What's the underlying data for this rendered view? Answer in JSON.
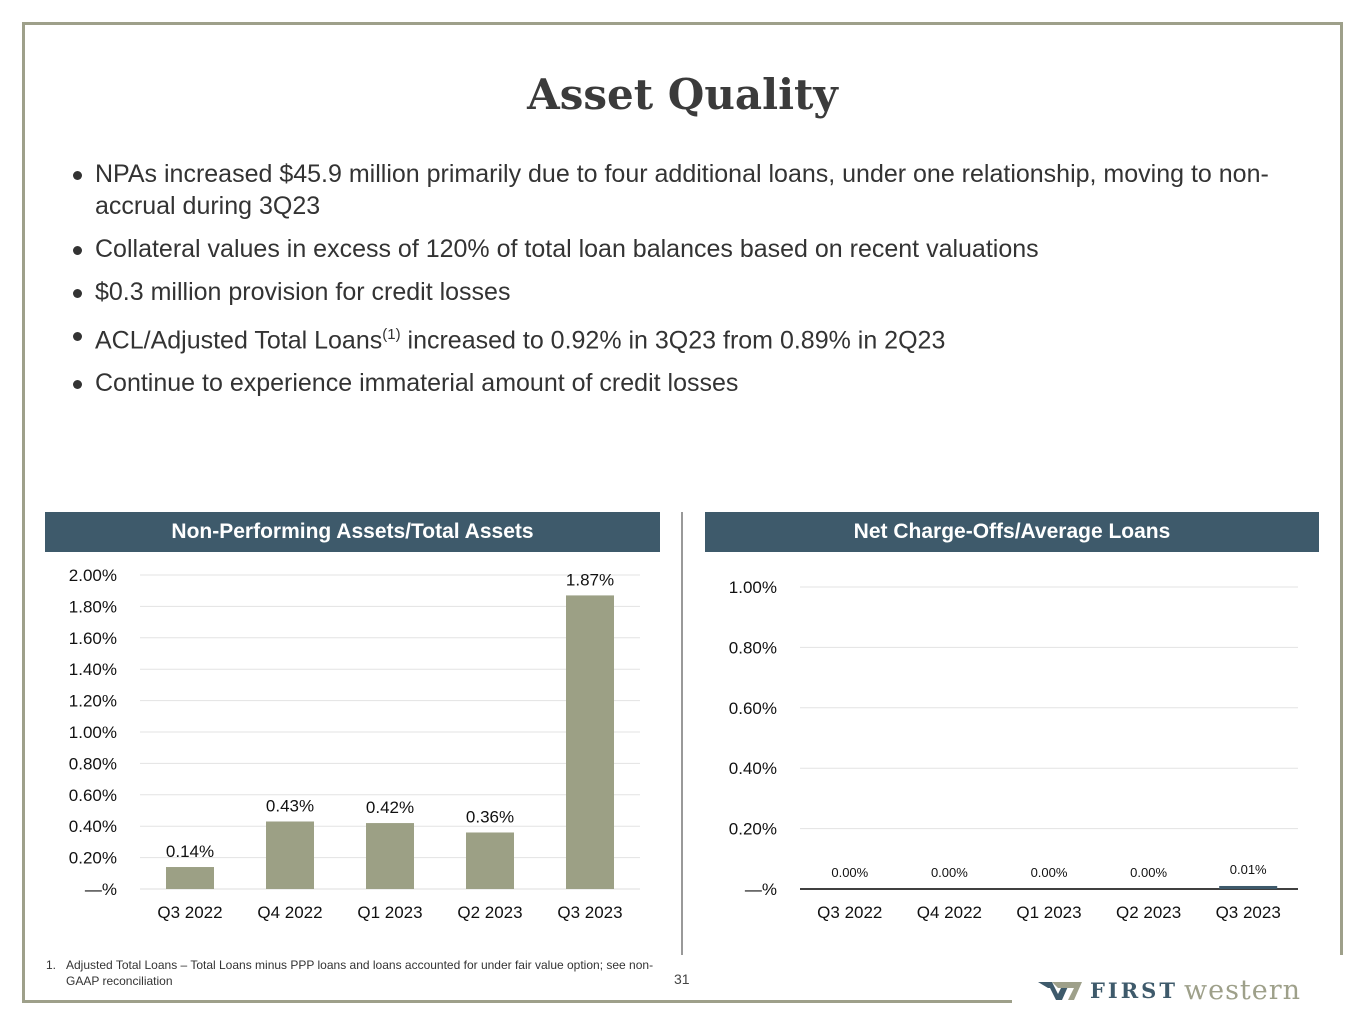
{
  "title": "Asset Quality",
  "bullets": [
    {
      "text": "NPAs increased $45.9 million primarily due to four additional loans, under one relationship, moving to non-accrual during 3Q23"
    },
    {
      "text": "Collateral values in excess of 120% of total loan balances based on recent valuations"
    },
    {
      "text": "$0.3 million provision for credit losses"
    },
    {
      "pre": "ACL/Adjusted Total Loans",
      "sup": "(1)",
      "post": " increased to 0.92% in 3Q23 from 0.89% in 2Q23"
    },
    {
      "text": "Continue to experience immaterial amount of credit losses"
    }
  ],
  "chart_data": [
    {
      "type": "bar",
      "title": "Non-Performing Assets/Total Assets",
      "categories": [
        "Q3 2022",
        "Q4 2022",
        "Q1 2023",
        "Q2 2023",
        "Q3 2023"
      ],
      "values": [
        0.14,
        0.43,
        0.42,
        0.36,
        1.87
      ],
      "data_labels": [
        "0.14%",
        "0.43%",
        "0.42%",
        "0.36%",
        "1.87%"
      ],
      "ylim": [
        0,
        2.0
      ],
      "yticks": [
        0,
        0.2,
        0.4,
        0.6,
        0.8,
        1.0,
        1.2,
        1.4,
        1.6,
        1.8,
        2.0
      ],
      "ytick_labels": [
        "—%",
        "0.20%",
        "0.40%",
        "0.60%",
        "0.80%",
        "1.00%",
        "1.20%",
        "1.40%",
        "1.60%",
        "1.80%",
        "2.00%"
      ],
      "grid": true,
      "bar_color": "#9ca085"
    },
    {
      "type": "bar",
      "title": "Net Charge-Offs/Average Loans",
      "categories": [
        "Q3 2022",
        "Q4 2022",
        "Q1 2023",
        "Q2 2023",
        "Q3 2023"
      ],
      "values": [
        0.0,
        0.0,
        0.0,
        0.0,
        0.01
      ],
      "data_labels": [
        "0.00%",
        "0.00%",
        "0.00%",
        "0.00%",
        "0.01%"
      ],
      "ylim": [
        0,
        1.0
      ],
      "yticks": [
        0,
        0.2,
        0.4,
        0.6,
        0.8,
        1.0
      ],
      "ytick_labels": [
        "—%",
        "0.20%",
        "0.40%",
        "0.60%",
        "0.80%",
        "1.00%"
      ],
      "grid": true,
      "bar_color": "#3e5a6b"
    }
  ],
  "footnote": {
    "num": "1.",
    "text": "Adjusted Total Loans – Total Loans minus PPP loans and loans accounted for under fair value option; see non-GAAP reconciliation"
  },
  "page_number": "31",
  "logo": {
    "first": "FIRST",
    "western": "western"
  },
  "colors": {
    "frame": "#9ea08a",
    "header": "#3e5a6b"
  }
}
